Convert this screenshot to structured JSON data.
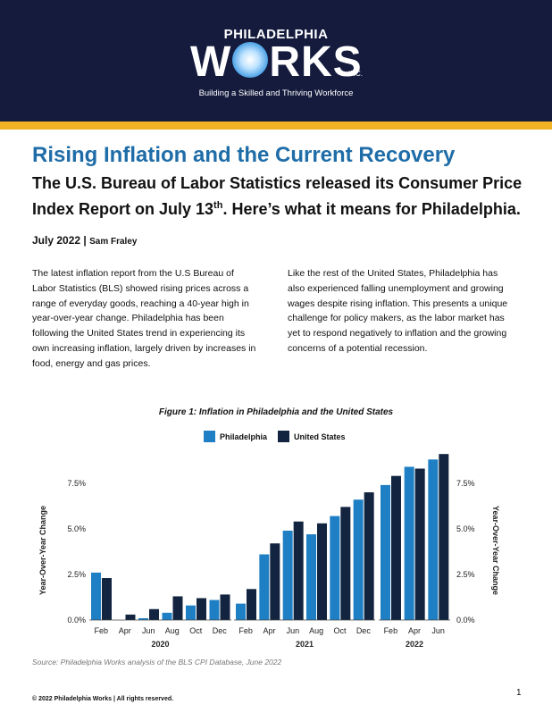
{
  "header": {
    "logo_top": "PHILADELPHIA",
    "logo_main_left": "W",
    "logo_main_right": "RKS",
    "logo_inc": "INC.",
    "tagline": "Building a Skilled and Thriving Workforce",
    "colors": {
      "navy": "#141b3d",
      "gold": "#f0b323"
    },
    "logo_icon": "globe-icon"
  },
  "article": {
    "title": "Rising Inflation and the Current Recovery",
    "subtitle_pre": "The U.S. Bureau of Labor Statistics released its Consumer Price Index Report on July 13",
    "subtitle_sup": "th",
    "subtitle_post": ". Here’s what it means for Philadelphia.",
    "date": "July 2022",
    "separator": "|",
    "author": "Sam Fraley",
    "col_left": "The latest inflation report from the U.S Bureau of Labor Statistics (BLS) showed rising prices across a range of everyday goods, reaching a 40-year high in year-over-year change. Philadelphia has been following the United States trend in experiencing its own increasing inflation, largely driven by increases in food, energy and gas prices.",
    "col_right": "Like the rest of the United States, Philadelphia has also experienced falling unemployment and growing wages despite rising inflation. This presents a unique challenge for policy makers, as the labor market has yet to respond negatively to inflation and the growing concerns of a potential recession."
  },
  "figure": {
    "caption": "Figure 1:  Inflation in Philadelphia and the United States",
    "source": "Source: Philadelphia Works analysis of the BLS CPI Database, June 2022"
  },
  "chart_data": {
    "type": "bar",
    "ylabel": "Year-Over-Year Change",
    "ylim": [
      0,
      9.5
    ],
    "yticks": [
      "0.0%",
      "2.5%",
      "5.0%",
      "7.5%"
    ],
    "ytick_values": [
      0,
      2.5,
      5.0,
      7.5
    ],
    "legend_placement": "top",
    "grid": false,
    "series": [
      {
        "name": "Philadelphia",
        "color": "#1f7fc4"
      },
      {
        "name": "United States",
        "color": "#12243f"
      }
    ],
    "panels": [
      {
        "year": "2020",
        "tick_labels": [
          "Feb",
          "Apr",
          "Jun",
          "Aug",
          "Oct",
          "Dec"
        ],
        "philadelphia": [
          2.6,
          0.0,
          0.1,
          0.4,
          0.8,
          1.1
        ],
        "united_states": [
          2.3,
          0.3,
          0.6,
          1.3,
          1.2,
          1.4
        ]
      },
      {
        "year": "2021",
        "tick_labels": [
          "Feb",
          "Apr",
          "Jun",
          "Aug",
          "Oct",
          "Dec"
        ],
        "philadelphia": [
          0.9,
          3.6,
          4.9,
          4.7,
          5.7,
          6.6
        ],
        "united_states": [
          1.7,
          4.2,
          5.4,
          5.3,
          6.2,
          7.0
        ]
      },
      {
        "year": "2022",
        "tick_labels": [
          "Feb",
          "Apr",
          "Jun"
        ],
        "philadelphia": [
          7.4,
          8.4,
          8.8
        ],
        "united_states": [
          7.9,
          8.3,
          9.1
        ]
      }
    ]
  },
  "footer": {
    "copyright": "© 2022 Philadelphia Works | All rights reserved.",
    "page_number": "1"
  }
}
